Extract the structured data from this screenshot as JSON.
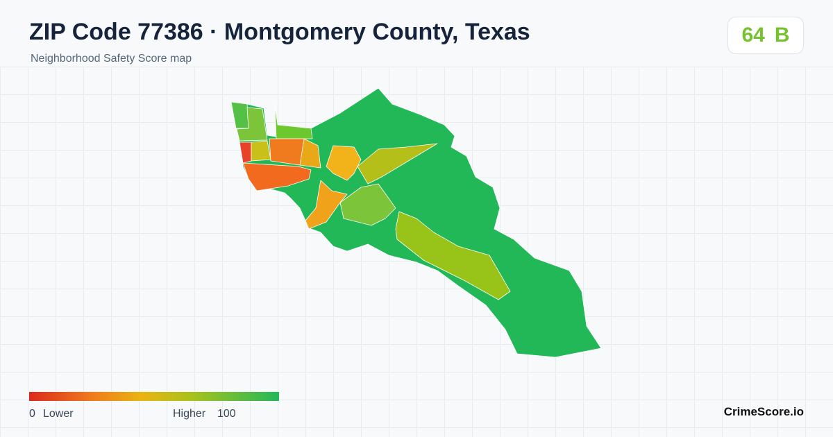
{
  "header": {
    "title": "ZIP Code 77386 · Montgomery County, Texas",
    "subtitle": "Neighborhood Safety Score map"
  },
  "score": {
    "value": 64,
    "grade": "B"
  },
  "legend": {
    "min": 0,
    "min_label": "Lower",
    "max_label": "Higher",
    "max": 100
  },
  "brand": "CrimeScore.io"
}
